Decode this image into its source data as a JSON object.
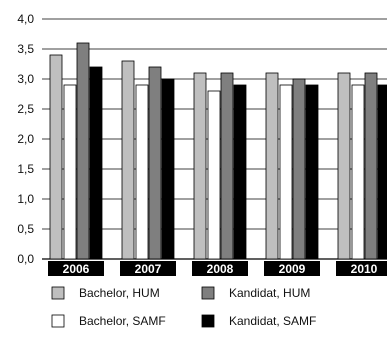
{
  "chart_data": {
    "type": "bar",
    "title": "",
    "xlabel": "",
    "ylabel": "",
    "categories": [
      "2006",
      "2007",
      "2008",
      "2009",
      "2010"
    ],
    "ylim": [
      0,
      4
    ],
    "yticks": [
      "0,0",
      "0,5",
      "1,0",
      "1,5",
      "2,0",
      "2,5",
      "3,0",
      "3,5",
      "4,0"
    ],
    "ytick_values": [
      0,
      0.5,
      1.0,
      1.5,
      2.0,
      2.5,
      3.0,
      3.5,
      4.0
    ],
    "grid": true,
    "legend_position": "bottom",
    "series": [
      {
        "name": "Bachelor, HUM",
        "color": "#bfbfbf",
        "values": [
          3.4,
          3.3,
          3.1,
          3.1,
          3.1
        ]
      },
      {
        "name": "Bachelor, SAMF",
        "color": "#ffffff",
        "values": [
          2.9,
          2.9,
          2.8,
          2.9,
          2.9
        ]
      },
      {
        "name": "Kandidat, HUM",
        "color": "#7f7f7f",
        "values": [
          3.6,
          3.2,
          3.1,
          3.0,
          3.1
        ]
      },
      {
        "name": "Kandidat, SAMF",
        "color": "#000000",
        "values": [
          3.2,
          3.0,
          2.9,
          2.9,
          2.9
        ]
      }
    ]
  }
}
